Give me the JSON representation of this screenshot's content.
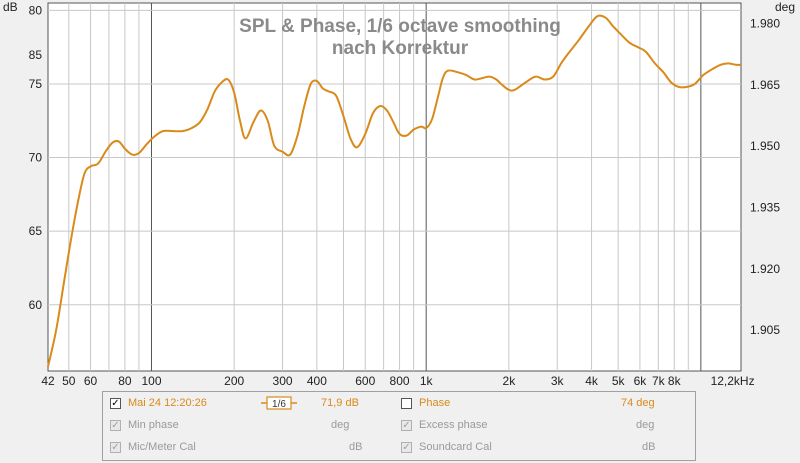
{
  "chart_data": {
    "type": "line",
    "title": "SPL & Phase, 1/6 octave smoothing",
    "subtitle": "nach Korrektur",
    "ylabel_left": "dB",
    "ylabel_right": "deg",
    "xlim": [
      42,
      14000
    ],
    "x_scale": "log",
    "ylim": [
      55.5,
      80.5
    ],
    "ylim_right": [
      1.895,
      1.985
    ],
    "grid": true,
    "x_ticks": [
      {
        "v": 42,
        "label": "42"
      },
      {
        "v": 50,
        "label": "50"
      },
      {
        "v": 60,
        "label": "60"
      },
      {
        "v": 80,
        "label": "80"
      },
      {
        "v": 100,
        "label": "100"
      },
      {
        "v": 200,
        "label": "200"
      },
      {
        "v": 300,
        "label": "300"
      },
      {
        "v": 400,
        "label": "400"
      },
      {
        "v": 600,
        "label": "600"
      },
      {
        "v": 800,
        "label": "800"
      },
      {
        "v": 1000,
        "label": "1k"
      },
      {
        "v": 2000,
        "label": "2k"
      },
      {
        "v": 3000,
        "label": "3k"
      },
      {
        "v": 4000,
        "label": "4k"
      },
      {
        "v": 5000,
        "label": "5k"
      },
      {
        "v": 6000,
        "label": "6k"
      },
      {
        "v": 7000,
        "label": "7k"
      },
      {
        "v": 8000,
        "label": "8k"
      },
      {
        "v": 12200,
        "label": "12,2kHz"
      }
    ],
    "y_ticks": [
      60,
      65,
      70,
      75,
      80,
      85
    ],
    "y_ticks_right": [
      "1.905",
      "1.920",
      "1.935",
      "1.950",
      "1.965",
      "1.980"
    ],
    "y_ticks_right_values": [
      1.905,
      1.92,
      1.935,
      1.95,
      1.965,
      1.98
    ],
    "series": [
      {
        "name": "Mai 24 12:20:26",
        "color": "#d98a1a",
        "x": [
          42,
          45,
          48,
          51,
          54,
          57,
          60,
          64,
          68,
          72,
          76,
          80,
          85,
          90,
          96,
          102,
          110,
          120,
          130,
          140,
          150,
          160,
          170,
          180,
          190,
          200,
          210,
          220,
          235,
          250,
          265,
          280,
          300,
          320,
          340,
          360,
          380,
          400,
          420,
          440,
          470,
          500,
          530,
          560,
          600,
          640,
          680,
          720,
          760,
          800,
          850,
          900,
          960,
          1000,
          1050,
          1100,
          1150,
          1200,
          1300,
          1400,
          1500,
          1600,
          1700,
          1800,
          1900,
          2000,
          2100,
          2300,
          2500,
          2700,
          2900,
          3100,
          3300,
          3600,
          3900,
          4200,
          4500,
          4800,
          5100,
          5500,
          5900,
          6300,
          6800,
          7300,
          7800,
          8300,
          8900,
          9500,
          10200,
          11000,
          11800,
          12600,
          13400,
          14000
        ],
        "y": [
          55.8,
          58.3,
          61.5,
          64.5,
          67.0,
          68.9,
          69.4,
          69.6,
          70.4,
          71.0,
          71.1,
          70.6,
          70.2,
          70.3,
          70.9,
          71.4,
          71.8,
          71.8,
          71.8,
          72.0,
          72.4,
          73.3,
          74.5,
          75.1,
          75.3,
          74.4,
          72.5,
          71.3,
          72.4,
          73.2,
          72.5,
          70.8,
          70.4,
          70.2,
          71.5,
          73.5,
          75.0,
          75.2,
          74.7,
          74.5,
          74.2,
          72.8,
          71.3,
          70.7,
          71.6,
          73.0,
          73.5,
          73.2,
          72.4,
          71.6,
          71.5,
          71.9,
          72.1,
          72.0,
          72.6,
          74.0,
          75.4,
          75.9,
          75.8,
          75.6,
          75.3,
          75.4,
          75.5,
          75.3,
          74.9,
          74.6,
          74.6,
          75.1,
          75.5,
          75.3,
          75.5,
          76.4,
          77.1,
          78.0,
          78.9,
          79.6,
          79.5,
          78.9,
          78.4,
          77.8,
          77.5,
          77.2,
          76.4,
          75.8,
          75.1,
          74.8,
          74.8,
          75.0,
          75.6,
          76.0,
          76.3,
          76.4,
          76.3,
          76.3
        ]
      }
    ]
  },
  "legend": {
    "row1": {
      "label": "Mai 24 12:20:26",
      "smoothing": "1/6",
      "value": "71,9 dB",
      "phase_label": "Phase",
      "phase_value": "74 deg"
    },
    "row2": {
      "min_phase_label": "Min phase",
      "min_phase_unit": "deg",
      "excess_phase_label": "Excess phase",
      "excess_phase_unit": "deg"
    },
    "row3": {
      "mic_cal_label": "Mic/Meter Cal",
      "mic_cal_unit": "dB",
      "soundcard_cal_label": "Soundcard Cal",
      "soundcard_cal_unit": "dB"
    }
  }
}
